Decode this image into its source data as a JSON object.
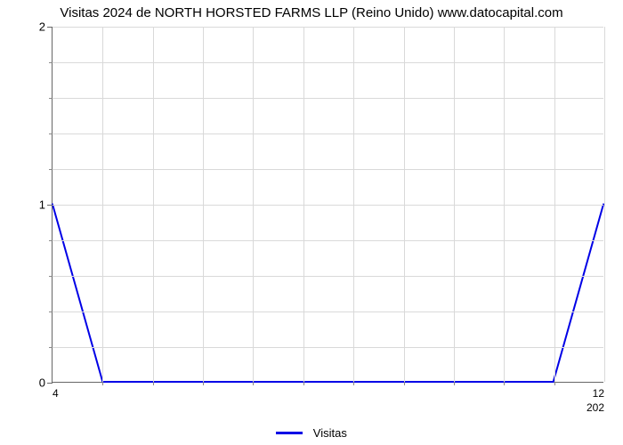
{
  "chart": {
    "type": "line",
    "title": "Visitas 2024 de NORTH HORSTED FARMS LLP (Reino Unido) www.datocapital.com",
    "title_fontsize": 15,
    "background_color": "#ffffff",
    "grid_color": "#d9d9d9",
    "axis_color": "#666666",
    "text_color": "#000000",
    "line_color": "#0000e6",
    "line_width": 2,
    "y": {
      "min": 0,
      "max": 2,
      "major_ticks": [
        0,
        1,
        2
      ],
      "minor_per_major": 4,
      "label_fontsize": 13
    },
    "x": {
      "n_points": 12,
      "left_label": "4",
      "right_label": "12",
      "sub_right_label": "202",
      "label_fontsize": 12
    },
    "series": {
      "name": "Visitas",
      "values": [
        1,
        0,
        0,
        0,
        0,
        0,
        0,
        0,
        0,
        0,
        0,
        1
      ]
    },
    "legend": {
      "label": "Visitas",
      "swatch_color": "#0000e6",
      "fontsize": 13
    }
  }
}
